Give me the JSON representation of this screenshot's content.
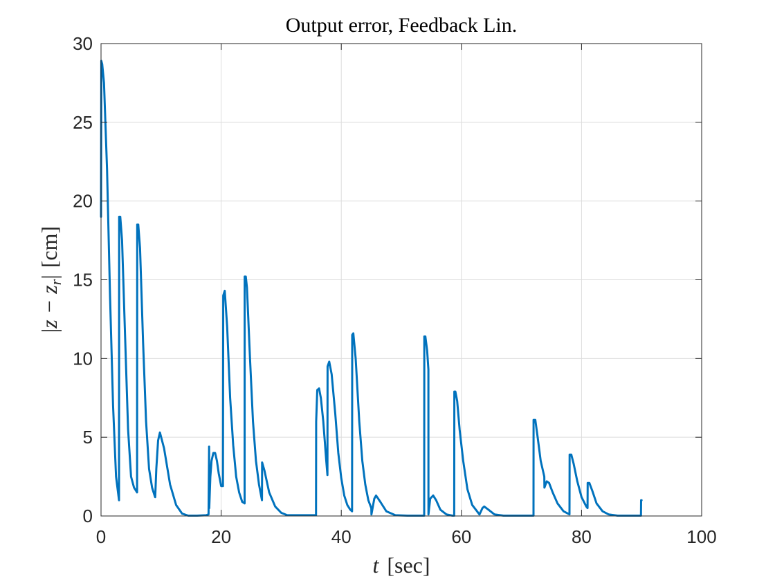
{
  "chart_data": {
    "type": "line",
    "title": "Output error, Feedback Lin.",
    "xlabel": "t [sec]",
    "xlabel_parts": {
      "variable": "t",
      "unit": "[sec]"
    },
    "ylabel": "|z − z_r| [cm]",
    "ylabel_parts": {
      "open": "|",
      "variable": "z − z",
      "subscript": "r",
      "close": "|",
      "unit": "[cm]"
    },
    "xlim": [
      0,
      100
    ],
    "ylim": [
      0,
      30
    ],
    "xticks": [
      0,
      20,
      40,
      60,
      80,
      100
    ],
    "yticks": [
      0,
      5,
      10,
      15,
      20,
      25,
      30
    ],
    "xtick_labels": [
      "0",
      "20",
      "40",
      "60",
      "80",
      "100"
    ],
    "ytick_labels": [
      "0",
      "5",
      "10",
      "15",
      "20",
      "25",
      "30"
    ],
    "grid": true,
    "color": "#0072BD",
    "series": [
      {
        "x": [
          0,
          0.05,
          0.2,
          0.5,
          1,
          1.5,
          2,
          2.5,
          3,
          3.02,
          3.2,
          3.5,
          4,
          4.5,
          5,
          5.5,
          6,
          6.02,
          6.2,
          6.5,
          7,
          7.5,
          8,
          8.5,
          9,
          9.02,
          9.2,
          9.5,
          9.8,
          10.5,
          11.5,
          12.5,
          13.5,
          14.5,
          16,
          17.5,
          17.9,
          18,
          18.02,
          18.2,
          18.4,
          18.7,
          19,
          19.3,
          19.6,
          20,
          20.3,
          20.35,
          20.6,
          21,
          21.5,
          22,
          22.5,
          23,
          23.5,
          23.9,
          23.92,
          24.1,
          24.3,
          24.8,
          25.3,
          25.8,
          26.3,
          26.8,
          26.82,
          27.2,
          28,
          29,
          30,
          31,
          32,
          34,
          35.8,
          35.82,
          36,
          36.3,
          36.6,
          37,
          37.5,
          37.7,
          37.72,
          38,
          38.4,
          39,
          39.5,
          40,
          40.5,
          41,
          41.5,
          41.8,
          41.82,
          42,
          42.4,
          43,
          43.5,
          44,
          44.5,
          45,
          45.02,
          45.5,
          45.8,
          46.5,
          47.5,
          49,
          51,
          53.8,
          53.82,
          54,
          54.3,
          54.5,
          54.52,
          54.8,
          55.3,
          55.8,
          56.5,
          57.5,
          58.5,
          58.8,
          58.82,
          59,
          59.3,
          59.7,
          60.3,
          61,
          61.8,
          62.6,
          63,
          63.02,
          63.5,
          63.8,
          64.5,
          65.5,
          67,
          69,
          72,
          72.02,
          72.3,
          72.7,
          73.2,
          73.8,
          73.82,
          74.2,
          74.6,
          75.2,
          76,
          77,
          78,
          78.02,
          78.3,
          78.7,
          79.3,
          80,
          80.8,
          81,
          81.02,
          81.3,
          81.8,
          82.5,
          83.5,
          84.5,
          86,
          88,
          89.9,
          89.92,
          90
        ],
        "y": [
          19.0,
          28.9,
          28.7,
          27.5,
          22.0,
          14.0,
          7.0,
          2.5,
          1.0,
          19.0,
          19.0,
          17.5,
          11.5,
          5.5,
          2.5,
          1.8,
          1.5,
          18.5,
          18.5,
          17.0,
          11.0,
          6.0,
          3.0,
          1.8,
          1.2,
          1.2,
          3.0,
          4.8,
          5.3,
          4.3,
          2.0,
          0.7,
          0.15,
          0.02,
          0.02,
          0.05,
          0.1,
          4.4,
          0.5,
          2.5,
          3.5,
          4.0,
          4.0,
          3.5,
          2.7,
          1.9,
          1.9,
          14.0,
          14.3,
          12.0,
          7.5,
          4.5,
          2.5,
          1.5,
          0.9,
          0.8,
          15.2,
          15.2,
          14.5,
          10.0,
          6.0,
          3.5,
          2.0,
          1.0,
          3.4,
          2.9,
          1.5,
          0.6,
          0.2,
          0.05,
          0.05,
          0.05,
          0.05,
          6.0,
          8.0,
          8.1,
          7.5,
          6.0,
          3.5,
          2.6,
          9.5,
          9.8,
          9.0,
          6.5,
          4.0,
          2.4,
          1.3,
          0.7,
          0.4,
          0.3,
          11.5,
          11.6,
          10.0,
          6.0,
          3.5,
          2.0,
          1.0,
          0.5,
          0.1,
          1.1,
          1.3,
          0.9,
          0.3,
          0.05,
          0.02,
          0.02,
          11.4,
          11.4,
          10.5,
          9.3,
          0.1,
          1.1,
          1.3,
          1.0,
          0.4,
          0.1,
          0.02,
          0.02,
          7.9,
          7.9,
          7.3,
          5.5,
          3.5,
          1.7,
          0.7,
          0.3,
          0.1,
          0.1,
          0.5,
          0.6,
          0.4,
          0.1,
          0.02,
          0.02,
          0.02,
          6.1,
          6.1,
          5.0,
          3.5,
          2.5,
          1.8,
          2.2,
          2.1,
          1.5,
          0.8,
          0.3,
          0.1,
          3.9,
          3.9,
          3.3,
          2.2,
          1.2,
          0.6,
          0.5,
          2.1,
          2.1,
          1.6,
          0.8,
          0.3,
          0.1,
          0.02,
          0.02,
          0.02,
          1.0,
          1.0
        ]
      }
    ]
  }
}
